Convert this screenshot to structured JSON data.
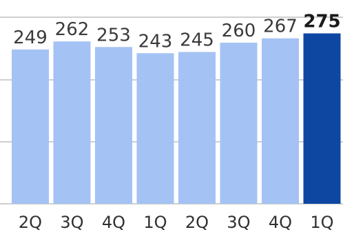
{
  "chart_data": {
    "type": "bar",
    "title": "",
    "xlabel": "",
    "ylabel": "",
    "categories": [
      "2Q",
      "3Q",
      "4Q",
      "1Q",
      "2Q",
      "3Q",
      "4Q",
      "1Q"
    ],
    "values": [
      249,
      262,
      253,
      243,
      245,
      260,
      267,
      275
    ],
    "highlight_index": 7,
    "grid": true,
    "colors": {
      "bar": "#a4c2f4",
      "highlight_bar": "#0d47a1"
    }
  }
}
